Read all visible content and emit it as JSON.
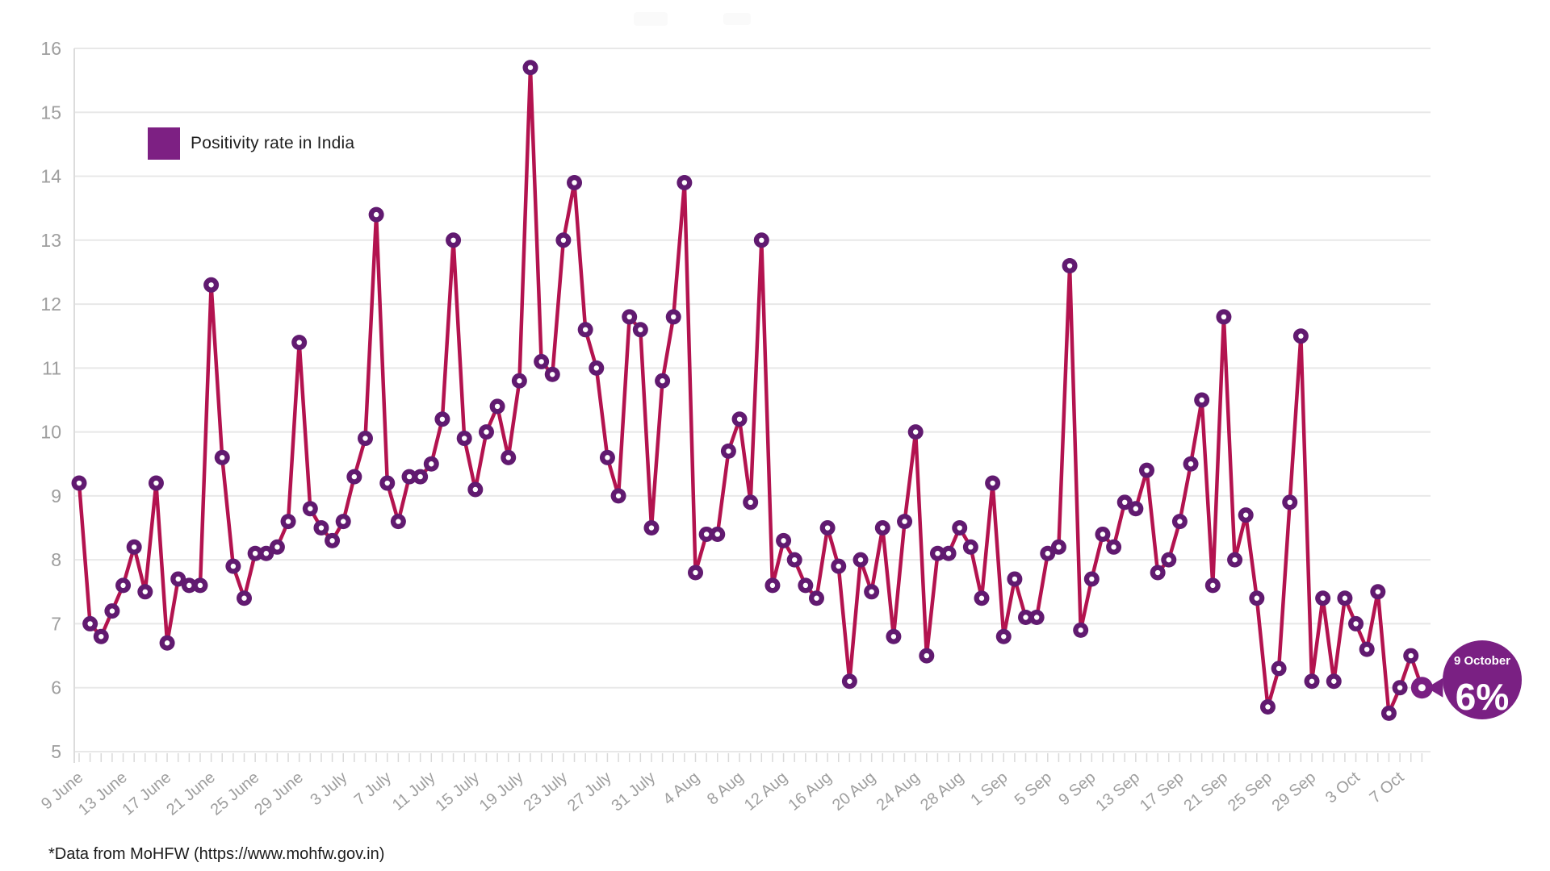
{
  "legend": {
    "label": "Positivity rate in India"
  },
  "footer": {
    "text": "*Data from MoHFW (https://www.mohfw.gov.in)"
  },
  "callout": {
    "date": "9 October",
    "value": "6%"
  },
  "colors": {
    "line": "#b3134f",
    "marker": "#611a70",
    "marker_hole": "#ffffff",
    "legend_swatch": "#7d2083",
    "callout_bubble": "#7a2083",
    "callout_text": "#ffffff",
    "axis_text": "#9e9e9e",
    "grid": "#e8e8e8",
    "axis_line": "#dcdcdc",
    "tick": "#d9d9d9"
  },
  "chart_data": {
    "type": "line",
    "title": "",
    "series_name": "Positivity rate in India",
    "x_start": "9 June",
    "x_end": "9 October",
    "ylim": [
      5,
      16
    ],
    "y_ticks": [
      5,
      6,
      7,
      8,
      9,
      10,
      11,
      12,
      13,
      14,
      15,
      16
    ],
    "grid": true,
    "legend_position": "top-left",
    "x_tick_every": 4,
    "x_tick_labels": [
      "9 June",
      "13 June",
      "17 June",
      "21 June",
      "25 June",
      "29 June",
      "3 July",
      "7 July",
      "11 July",
      "15 July",
      "19 July",
      "23 July",
      "27 July",
      "31 July",
      "4 Aug",
      "8 Aug",
      "12 Aug",
      "16 Aug",
      "20 Aug",
      "24 Aug",
      "28 Aug",
      "1 Sep",
      "5 Sep",
      "9 Sep",
      "13 Sep",
      "17 Sep",
      "21 Sep",
      "25 Sep",
      "29 Sep",
      "3 Oct",
      "7 Oct"
    ],
    "dates": [
      "9 June",
      "10 June",
      "11 June",
      "12 June",
      "13 June",
      "14 June",
      "15 June",
      "16 June",
      "17 June",
      "18 June",
      "19 June",
      "20 June",
      "21 June",
      "22 June",
      "23 June",
      "24 June",
      "25 June",
      "26 June",
      "27 June",
      "28 June",
      "29 June",
      "30 June",
      "1 July",
      "2 July",
      "3 July",
      "4 July",
      "5 July",
      "6 July",
      "7 July",
      "8 July",
      "9 July",
      "10 July",
      "11 July",
      "12 July",
      "13 July",
      "14 July",
      "15 July",
      "16 July",
      "17 July",
      "18 July",
      "19 July",
      "20 July",
      "21 July",
      "22 July",
      "23 July",
      "24 July",
      "25 July",
      "26 July",
      "27 July",
      "28 July",
      "29 July",
      "30 July",
      "31 July",
      "1 Aug",
      "2 Aug",
      "3 Aug",
      "4 Aug",
      "5 Aug",
      "6 Aug",
      "7 Aug",
      "8 Aug",
      "9 Aug",
      "10 Aug",
      "11 Aug",
      "12 Aug",
      "13 Aug",
      "14 Aug",
      "15 Aug",
      "16 Aug",
      "17 Aug",
      "18 Aug",
      "19 Aug",
      "20 Aug",
      "21 Aug",
      "22 Aug",
      "23 Aug",
      "24 Aug",
      "25 Aug",
      "26 Aug",
      "27 Aug",
      "28 Aug",
      "29 Aug",
      "30 Aug",
      "31 Aug",
      "1 Sep",
      "2 Sep",
      "3 Sep",
      "4 Sep",
      "5 Sep",
      "6 Sep",
      "7 Sep",
      "8 Sep",
      "9 Sep",
      "10 Sep",
      "11 Sep",
      "12 Sep",
      "13 Sep",
      "14 Sep",
      "15 Sep",
      "16 Sep",
      "17 Sep",
      "18 Sep",
      "19 Sep",
      "20 Sep",
      "21 Sep",
      "22 Sep",
      "23 Sep",
      "24 Sep",
      "25 Sep",
      "26 Sep",
      "27 Sep",
      "28 Sep",
      "29 Sep",
      "30 Sep",
      "1 Oct",
      "2 Oct",
      "3 Oct",
      "4 Oct",
      "5 Oct",
      "6 Oct",
      "7 Oct",
      "8 Oct",
      "9 Oct"
    ],
    "values": [
      9.2,
      7.0,
      6.8,
      7.2,
      7.6,
      8.2,
      7.5,
      9.2,
      6.7,
      7.7,
      7.6,
      7.6,
      12.3,
      9.6,
      7.9,
      7.4,
      8.1,
      8.1,
      8.2,
      8.6,
      11.4,
      8.8,
      8.5,
      8.3,
      8.6,
      9.3,
      9.9,
      13.4,
      9.2,
      8.6,
      9.3,
      9.3,
      9.5,
      10.2,
      13.0,
      9.9,
      9.1,
      10.0,
      10.4,
      9.6,
      10.8,
      15.7,
      11.1,
      10.9,
      13.0,
      13.9,
      11.6,
      11.0,
      9.6,
      9.0,
      11.8,
      11.6,
      8.5,
      10.8,
      11.8,
      13.9,
      7.8,
      8.4,
      8.4,
      9.7,
      10.2,
      8.9,
      13.0,
      7.6,
      8.3,
      8.0,
      7.6,
      7.4,
      8.5,
      7.9,
      6.1,
      8.0,
      7.5,
      8.5,
      6.8,
      8.6,
      10.0,
      6.5,
      8.1,
      8.1,
      8.5,
      8.2,
      7.4,
      9.2,
      6.8,
      7.7,
      7.1,
      7.1,
      8.1,
      8.2,
      12.6,
      6.9,
      7.7,
      8.4,
      8.2,
      8.9,
      8.8,
      9.4,
      7.8,
      8.0,
      8.6,
      9.5,
      10.5,
      7.6,
      11.8,
      8.0,
      8.7,
      7.4,
      5.7,
      6.3,
      8.9,
      11.5,
      6.1,
      7.4,
      6.1,
      7.4,
      7.0,
      6.6,
      7.5,
      5.6,
      6.0,
      6.5,
      6.0
    ],
    "last_point_annotation": {
      "date": "9 October",
      "label": "6%"
    }
  }
}
